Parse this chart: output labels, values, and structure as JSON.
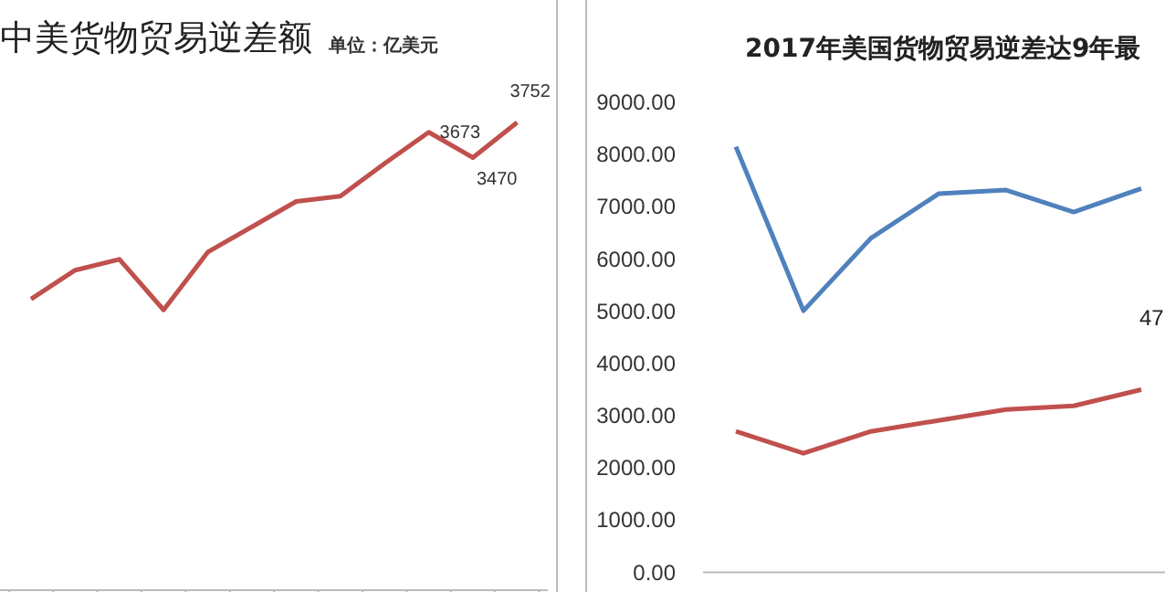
{
  "chart_data": [
    {
      "type": "line",
      "title": "中美货物贸易逆差额",
      "subtitle": "单位：亿美元",
      "categories": [
        null,
        null,
        null,
        null,
        null,
        null,
        null,
        null,
        null,
        null,
        null,
        null
      ],
      "values": [
        2335,
        2567,
        2654,
        2248,
        2712,
        2915,
        3118,
        3161,
        3422,
        3673,
        3470,
        3752
      ],
      "value_labels": [
        null,
        null,
        null,
        null,
        null,
        null,
        null,
        null,
        null,
        "3673",
        "3470",
        "3752"
      ],
      "color": "#c0504d",
      "tick_labels": false
    },
    {
      "type": "line",
      "title": "2017年美国货物贸易逆差达9年最",
      "categories": [
        null,
        null,
        null,
        null,
        null,
        null,
        null
      ],
      "series": [
        {
          "color": "#4f81bd",
          "values": [
            8150,
            5010,
            6400,
            7250,
            7320,
            6900,
            7350
          ]
        },
        {
          "color": "#c0504d",
          "values": [
            2700,
            2280,
            2700,
            2910,
            3120,
            3190,
            3500
          ]
        }
      ],
      "annotations": [
        "47"
      ],
      "ylim": [
        0,
        9000
      ],
      "yticks": [
        {
          "value": 0,
          "label": "0.00"
        },
        {
          "value": 1000,
          "label": "1000.00"
        },
        {
          "value": 2000,
          "label": "2000.00"
        },
        {
          "value": 3000,
          "label": "3000.00"
        },
        {
          "value": 4000,
          "label": "4000.00"
        },
        {
          "value": 5000,
          "label": "5000.00"
        },
        {
          "value": 6000,
          "label": "6000.00"
        },
        {
          "value": 7000,
          "label": "7000.00"
        },
        {
          "value": 8000,
          "label": "8000.00"
        },
        {
          "value": 9000,
          "label": "9000.00"
        }
      ],
      "tick_labels": "y"
    }
  ]
}
